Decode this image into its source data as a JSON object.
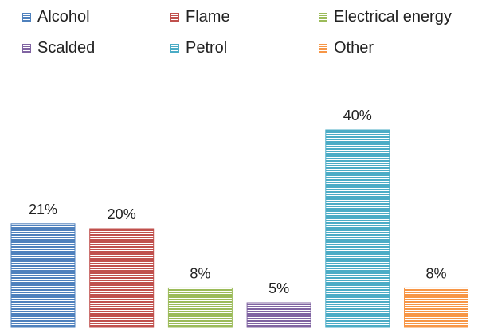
{
  "chart_data": {
    "type": "bar",
    "title": "",
    "xlabel": "",
    "ylabel": "",
    "ylim": [
      0,
      45
    ],
    "grid": false,
    "legend_position": "top",
    "categories": [
      "Alcohol",
      "Flame",
      "Electrical energy",
      "Scalded",
      "Petrol",
      "Other"
    ],
    "values": [
      21,
      20,
      8,
      5,
      40,
      8
    ],
    "value_labels": [
      "21%",
      "20%",
      "8%",
      "5%",
      "40%",
      "8%"
    ],
    "colors": [
      "#4f81bd",
      "#c0504d",
      "#9bbb59",
      "#8064a2",
      "#4bacc6",
      "#f79646"
    ],
    "bar_fill_style": "horizontal-stripes"
  },
  "legend": {
    "items": [
      {
        "label": "Alcohol",
        "color": "#4f81bd"
      },
      {
        "label": "Flame",
        "color": "#c0504d"
      },
      {
        "label": "Electrical energy",
        "color": "#9bbb59"
      },
      {
        "label": "Scalded",
        "color": "#8064a2"
      },
      {
        "label": "Petrol",
        "color": "#4bacc6"
      },
      {
        "label": "Other",
        "color": "#f79646"
      }
    ]
  }
}
